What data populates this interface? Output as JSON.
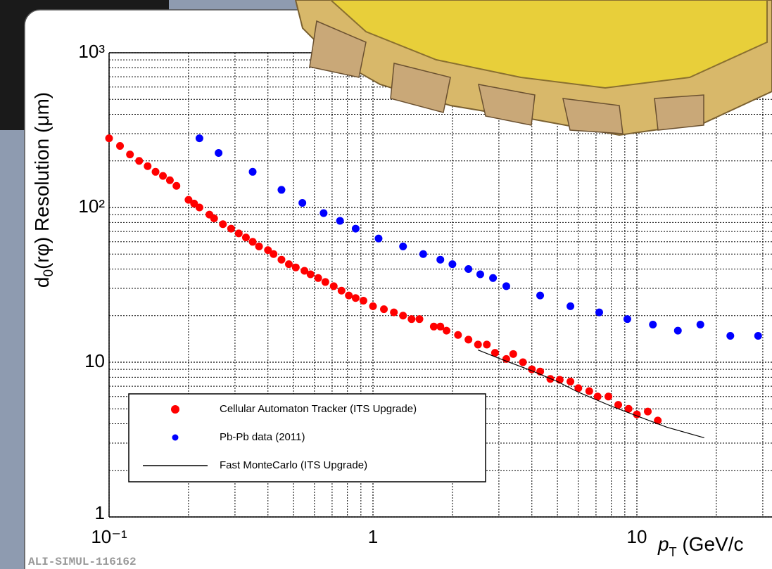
{
  "chart_data": {
    "type": "scatter",
    "ylabel": [
      "d",
      "0",
      "(rφ) Resolution  (μm)"
    ],
    "xlabel": [
      "p",
      "T",
      " (GeV/c"
    ],
    "footer": "ALI-SIMUL-116162",
    "log_x": true,
    "log_y": true,
    "grid": true,
    "xlim": [
      0.1,
      30
    ],
    "ylim": [
      1,
      1000
    ],
    "xticks": [
      {
        "value": 0.1,
        "label": "10⁻¹"
      },
      1,
      10
    ],
    "yticks": [
      1,
      10,
      {
        "value": 100,
        "label": "10²"
      },
      {
        "value": 1000,
        "label": "10³"
      }
    ],
    "legend": "lower left",
    "series": [
      {
        "name": "Cellular Automaton Tracker (ITS Upgrade)",
        "color": "#ff0000",
        "style": "marker",
        "x": [
          0.1,
          0.11,
          0.12,
          0.13,
          0.14,
          0.15,
          0.16,
          0.17,
          0.18,
          0.2,
          0.21,
          0.22,
          0.24,
          0.25,
          0.27,
          0.29,
          0.31,
          0.33,
          0.35,
          0.37,
          0.4,
          0.42,
          0.45,
          0.48,
          0.51,
          0.55,
          0.58,
          0.62,
          0.66,
          0.71,
          0.76,
          0.81,
          0.86,
          0.92,
          1.0,
          1.1,
          1.2,
          1.3,
          1.4,
          1.5,
          1.7,
          1.8,
          1.9,
          2.1,
          2.3,
          2.5,
          2.7,
          2.9,
          3.2,
          3.4,
          3.7,
          4.0,
          4.3,
          4.7,
          5.1,
          5.6,
          6.0,
          6.6,
          7.1,
          7.8,
          8.5,
          9.3,
          10,
          11,
          12
        ],
        "values": [
          280,
          250,
          220,
          200,
          185,
          170,
          160,
          150,
          138,
          112,
          106,
          100,
          90,
          85,
          78,
          73,
          68,
          64,
          60,
          56,
          53,
          50,
          46,
          43,
          41,
          39,
          37,
          35,
          33,
          31,
          29,
          27,
          26,
          25,
          23,
          22,
          21,
          20,
          19,
          19,
          17,
          17,
          16,
          15,
          14,
          13,
          13,
          11.5,
          10.5,
          11.3,
          10,
          9,
          8.7,
          7.8,
          7.7,
          7.5,
          6.8,
          6.5,
          6.0,
          6.0,
          5.3,
          5.0,
          4.6,
          4.8,
          4.2
        ]
      },
      {
        "name": "Pb-Pb data  (2011)",
        "color": "#0000ff",
        "style": "marker",
        "x": [
          0.22,
          0.26,
          0.35,
          0.45,
          0.54,
          0.65,
          0.75,
          0.86,
          1.05,
          1.3,
          1.55,
          1.8,
          2.0,
          2.3,
          2.55,
          2.85,
          3.2,
          4.3,
          5.6,
          7.2,
          9.2,
          11.5,
          14.3,
          17.4,
          22.6,
          28.8
        ],
        "values": [
          280,
          225,
          170,
          130,
          107,
          92,
          82,
          73,
          63,
          56,
          50,
          46,
          43,
          40,
          37,
          35,
          31,
          27,
          23,
          21,
          19,
          17.5,
          16,
          17.5,
          14.8,
          14.8
        ]
      },
      {
        "name": "Fast MonteCarlo (ITS Upgrade)",
        "color": "#000000",
        "style": "line",
        "x": [
          2.5,
          3,
          4,
          5,
          6,
          8,
          10,
          13,
          18
        ],
        "values": [
          12,
          10.6,
          8.8,
          7.5,
          6.4,
          5.2,
          4.5,
          3.8,
          3.25
        ]
      }
    ]
  }
}
